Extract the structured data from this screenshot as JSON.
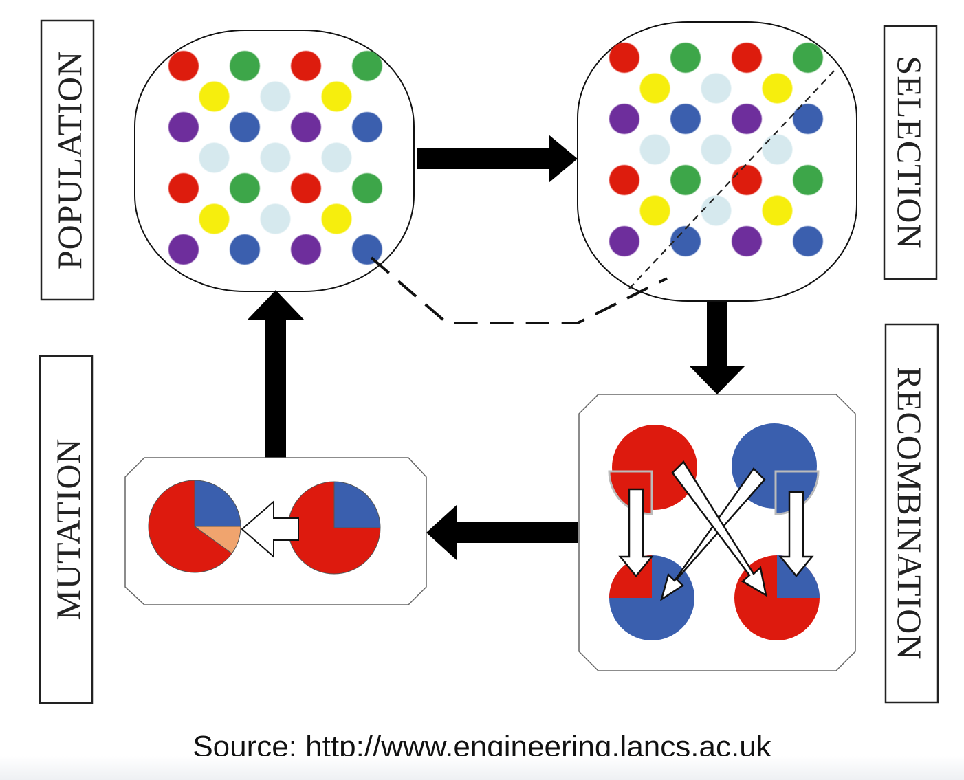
{
  "stages": {
    "population": "POPULATION",
    "selection": "SELECTION",
    "recombination": "RECOMBINATION",
    "mutation": "MUTATION"
  },
  "source": "Source: http://www.engineering.lancs.ac.uk",
  "colors": {
    "red": "#dd1a0e",
    "green": "#3ea648",
    "yellow": "#f6ee0a",
    "lightblue": "#d6e9ee",
    "purple": "#6e2f9c",
    "blue": "#3a5fae",
    "orange": "#f0a46e",
    "ink": "#000000"
  },
  "population": {
    "grid": [
      [
        "red",
        "green",
        "red",
        "green"
      ],
      [
        "yellow",
        "lightblue",
        "yellow"
      ],
      [
        "purple",
        "blue",
        "purple",
        "blue"
      ],
      [
        "lightblue",
        "lightblue",
        "lightblue"
      ],
      [
        "red",
        "green",
        "red",
        "green"
      ],
      [
        "yellow",
        "lightblue",
        "yellow"
      ],
      [
        "purple",
        "blue",
        "purple",
        "blue"
      ]
    ]
  },
  "selection": {
    "grid": [
      [
        "red",
        "green",
        "red",
        "green"
      ],
      [
        "yellow",
        "lightblue",
        "yellow"
      ],
      [
        "purple",
        "blue",
        "purple",
        "blue"
      ],
      [
        "lightblue",
        "lightblue",
        "lightblue"
      ],
      [
        "red",
        "green",
        "red",
        "green"
      ],
      [
        "yellow",
        "lightblue",
        "yellow"
      ],
      [
        "purple",
        "blue",
        "purple",
        "blue"
      ]
    ]
  },
  "mutation": {
    "parent_blue_fraction": 0.25,
    "child_blue_fraction": 0.25,
    "child_orange_fraction": 0.1
  }
}
